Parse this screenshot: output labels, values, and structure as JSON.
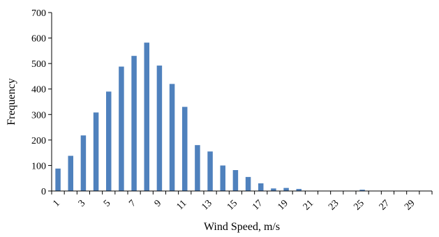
{
  "chart_data": {
    "type": "bar",
    "title": "",
    "xlabel": "Wind Speed, m/s",
    "ylabel": "Frequency",
    "categories": [
      "1",
      "2",
      "3",
      "4",
      "5",
      "6",
      "7",
      "8",
      "9",
      "10",
      "11",
      "12",
      "13",
      "14",
      "15",
      "16",
      "17",
      "18",
      "19",
      "20",
      "21",
      "22",
      "23",
      "24",
      "25",
      "26",
      "27",
      "28",
      "29",
      "30"
    ],
    "x_tick_labels": [
      "1",
      "3",
      "5",
      "7",
      "9",
      "11",
      "13",
      "15",
      "17",
      "19",
      "21",
      "23",
      "25",
      "27",
      "29"
    ],
    "values": [
      88,
      138,
      218,
      308,
      390,
      488,
      530,
      582,
      492,
      420,
      330,
      180,
      155,
      100,
      82,
      55,
      30,
      10,
      12,
      8,
      0,
      0,
      0,
      0,
      5,
      0,
      0,
      0,
      0,
      0
    ],
    "ylim": [
      0,
      700
    ],
    "y_ticks": [
      0,
      100,
      200,
      300,
      400,
      500,
      600,
      700
    ],
    "grid": false,
    "legend": "none",
    "bar_color": "#4F81BD"
  }
}
